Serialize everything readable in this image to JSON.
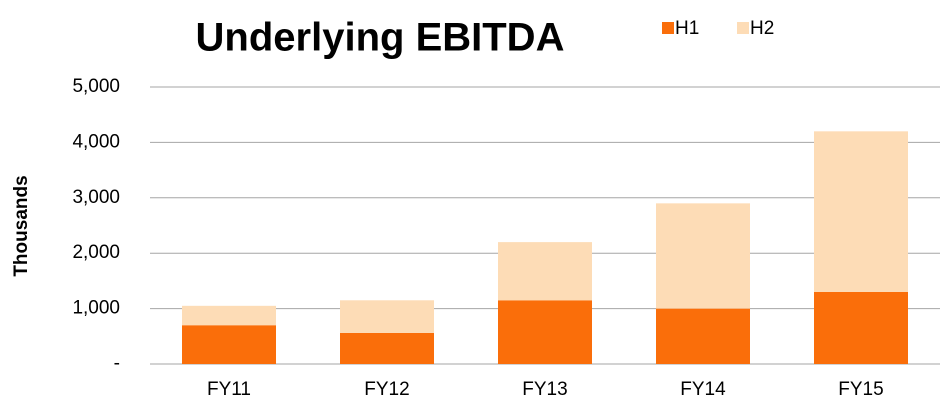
{
  "chart_data": {
    "type": "stacked_bar",
    "title": "Underlying EBITDA",
    "y_label": "Thousands",
    "categories": [
      "FY11",
      "FY12",
      "FY13",
      "FY14",
      "FY15"
    ],
    "series": [
      {
        "name": "H1",
        "color": "#fa6e0a",
        "values": [
          700,
          560,
          1150,
          1000,
          1300
        ]
      },
      {
        "name": "H2",
        "color": "#fddcb6",
        "values": [
          350,
          590,
          1050,
          1900,
          2900
        ]
      }
    ],
    "ylim": [
      0,
      5000
    ],
    "yticks": [
      {
        "value": 0,
        "label": "-"
      },
      {
        "value": 1000,
        "label": "1,000"
      },
      {
        "value": 2000,
        "label": "2,000"
      },
      {
        "value": 3000,
        "label": "3,000"
      },
      {
        "value": 4000,
        "label": "4,000"
      },
      {
        "value": 5000,
        "label": "5,000"
      }
    ],
    "grid": true,
    "legend": "top"
  }
}
